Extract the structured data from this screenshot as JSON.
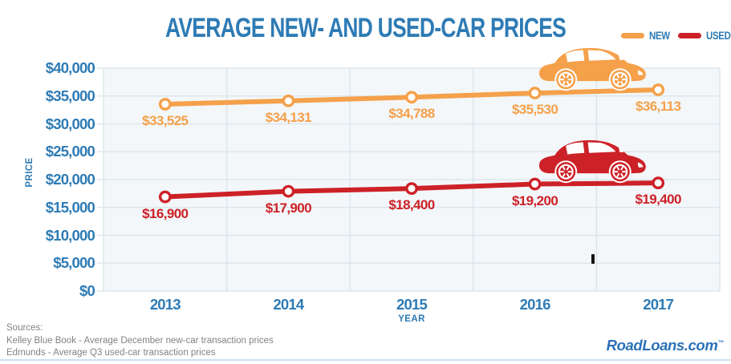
{
  "colors": {
    "accent_blue": "#2e7bb5",
    "plot_bg": "#f3f7f9",
    "grid": "#d8e4ea",
    "sources_gray": "#828282",
    "brand_blue": "#2d72b8"
  },
  "chart_data": {
    "type": "line",
    "title": "AVERAGE NEW- AND USED-CAR PRICES",
    "x": [
      2013,
      2014,
      2015,
      2016,
      2017
    ],
    "series": [
      {
        "name": "NEW",
        "color": "#f5a04a",
        "values": [
          33525,
          34131,
          34788,
          35530,
          36113
        ],
        "labels": [
          "$33,525",
          "$34,131",
          "$34,788",
          "$35,530",
          "$36,113"
        ]
      },
      {
        "name": "USED",
        "color": "#cd2128",
        "values": [
          16900,
          17900,
          18400,
          19200,
          19400
        ],
        "labels": [
          "$16,900",
          "$17,900",
          "$18,400",
          "$19,200",
          "$19,400"
        ]
      }
    ],
    "xlabel": "YEAR",
    "ylabel": "PRICE",
    "ylim": [
      0,
      40000
    ],
    "ytick_step": 5000,
    "grid": true,
    "legend_position": "top-right",
    "marker": "open-circle"
  },
  "axes": {
    "y_title": "PRICE",
    "x_title": "YEAR",
    "y_ticks": [
      "$40,000",
      "$35,000",
      "$30,000",
      "$25,000",
      "$20,000",
      "$15,000",
      "$10,000",
      "$5,000",
      "$0"
    ],
    "x_ticks": [
      "2013",
      "2014",
      "2015",
      "2016",
      "2017"
    ]
  },
  "footer": {
    "sources_heading": "Sources:",
    "source_lines": [
      "Kelley Blue Book - Average December new-car transaction prices",
      "Edmunds - Average Q3 used-car transaction prices"
    ],
    "brand": "RoadLoans.com",
    "brand_mark": "™"
  }
}
